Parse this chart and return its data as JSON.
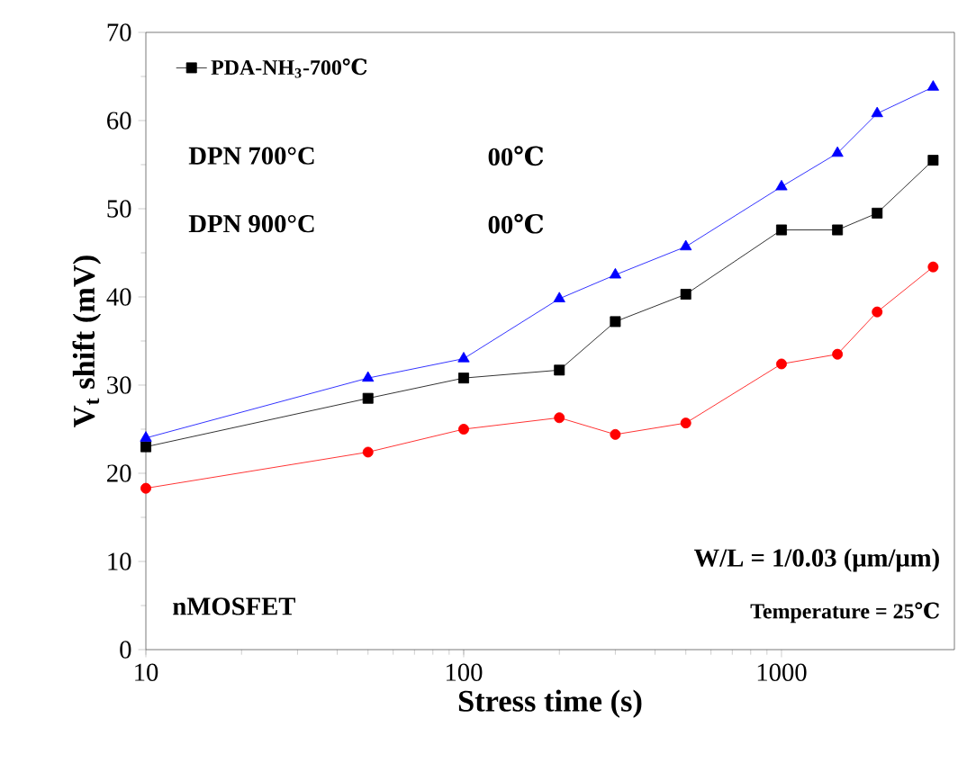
{
  "chart_data": {
    "type": "line",
    "xlabel": "Stress time (s)",
    "ylabel": "V$_{t}$ shift (mV)",
    "log": "x",
    "xlim": [
      10,
      3500
    ],
    "ylim": [
      0,
      70
    ],
    "xticks": [
      10,
      100,
      1000
    ],
    "yticks": [
      0,
      10,
      20,
      30,
      40,
      50,
      60,
      70
    ],
    "grid": false,
    "legend": "top left",
    "line_style": "solid",
    "x": [
      10,
      50,
      100,
      200,
      300,
      500,
      1000,
      1500,
      2000,
      3000
    ],
    "series": [
      {
        "name": "PDA-NH$_{3}$-700℃",
        "color": "#000000",
        "marker": "square",
        "values": [
          23,
          28.5,
          30.8,
          31.7,
          37.2,
          40.3,
          47.6,
          47.6,
          49.5,
          55.5
        ]
      },
      {
        "color": "#ff0000",
        "marker": "circle",
        "values": [
          18.3,
          22.4,
          25,
          26.3,
          24.4,
          25.7,
          32.4,
          33.5,
          38.3,
          43.4
        ]
      },
      {
        "color": "#0000ff",
        "marker": "triangle",
        "values": [
          24,
          30.8,
          33,
          39.8,
          42.5,
          45.7,
          52.5,
          56.3,
          60.8,
          63.8
        ]
      }
    ],
    "annotations": [
      "DPN 700°C",
      "00℃",
      "DPN 900°C",
      "00℃",
      "W/L = 1/0.03 (μm/μm)",
      "Temperature = 25℃",
      "nMOSFET"
    ]
  }
}
